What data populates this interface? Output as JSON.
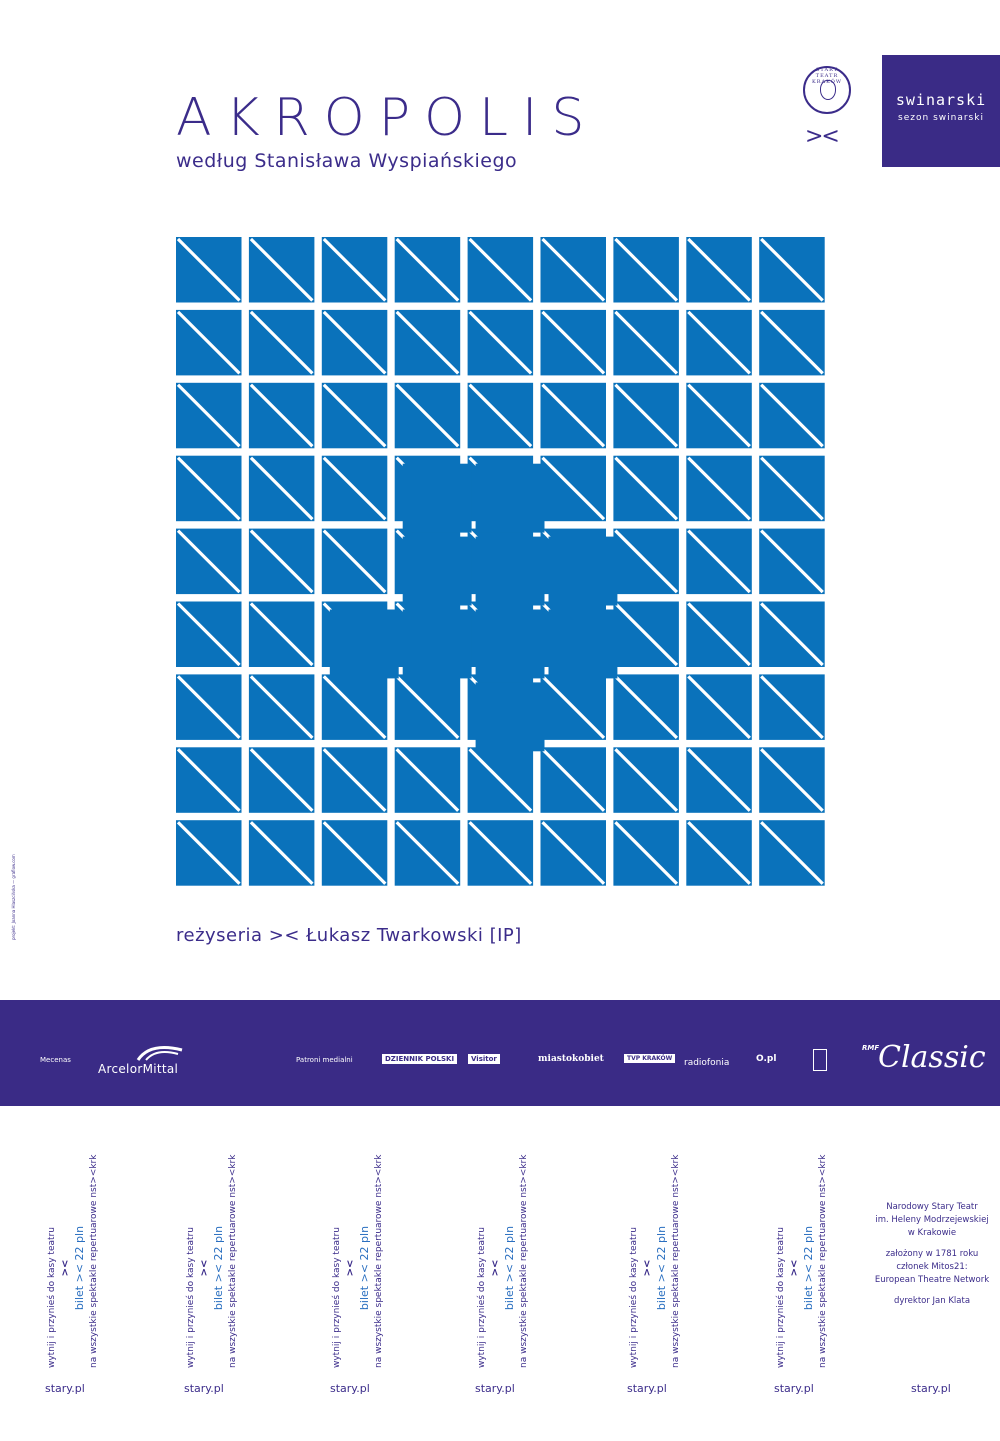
{
  "poster": {
    "title": "AKROPOLIS",
    "subtitle": "według Stanisława Wyspiańskiego",
    "director": "reżyseria >< Łukasz Twarkowski [IP]",
    "credit": "projekt: Joanna Hlaszcińska — graflow.com"
  },
  "logos": {
    "seal_text": "STARY TEATR KRAKÓW",
    "mark": "><",
    "season_title": "swinarski",
    "season_subtitle": "sezon swinarski"
  },
  "sponsors": {
    "patron_label": "Mecenas",
    "patron_name": "ArcelorMittal",
    "media_label": "Patroni medialni",
    "media": [
      "DZIENNIK POLSKI",
      "Visitor",
      "miastokobiet",
      "TVP KRAKÓW",
      "radiofonia",
      "O.pl",
      "RMF Classic"
    ],
    "rmf": "RMF",
    "classic": "Classic"
  },
  "coupon": {
    "line1": "wytnij i przynieś do kasy teatru",
    "mark": "><",
    "price": "bilet >< 22 pln",
    "line3": "na wszystkie spektakle repertuarowe nst><krk",
    "site": "stary.pl"
  },
  "info": {
    "line1": "Narodowy Stary Teatr",
    "line2": "im. Heleny Modrzejewskiej",
    "line3": "w Krakowie",
    "line4": "założony w 1781 roku",
    "line5": "członek Mitos21:",
    "line6": "European Theatre Network",
    "line7": "dyrektor Jan Klata",
    "site": "stary.pl"
  },
  "colors": {
    "tile_blue": "#0a72bb",
    "brand_purple": "#3a2b86",
    "accent_blue": "#2a6fc0"
  }
}
